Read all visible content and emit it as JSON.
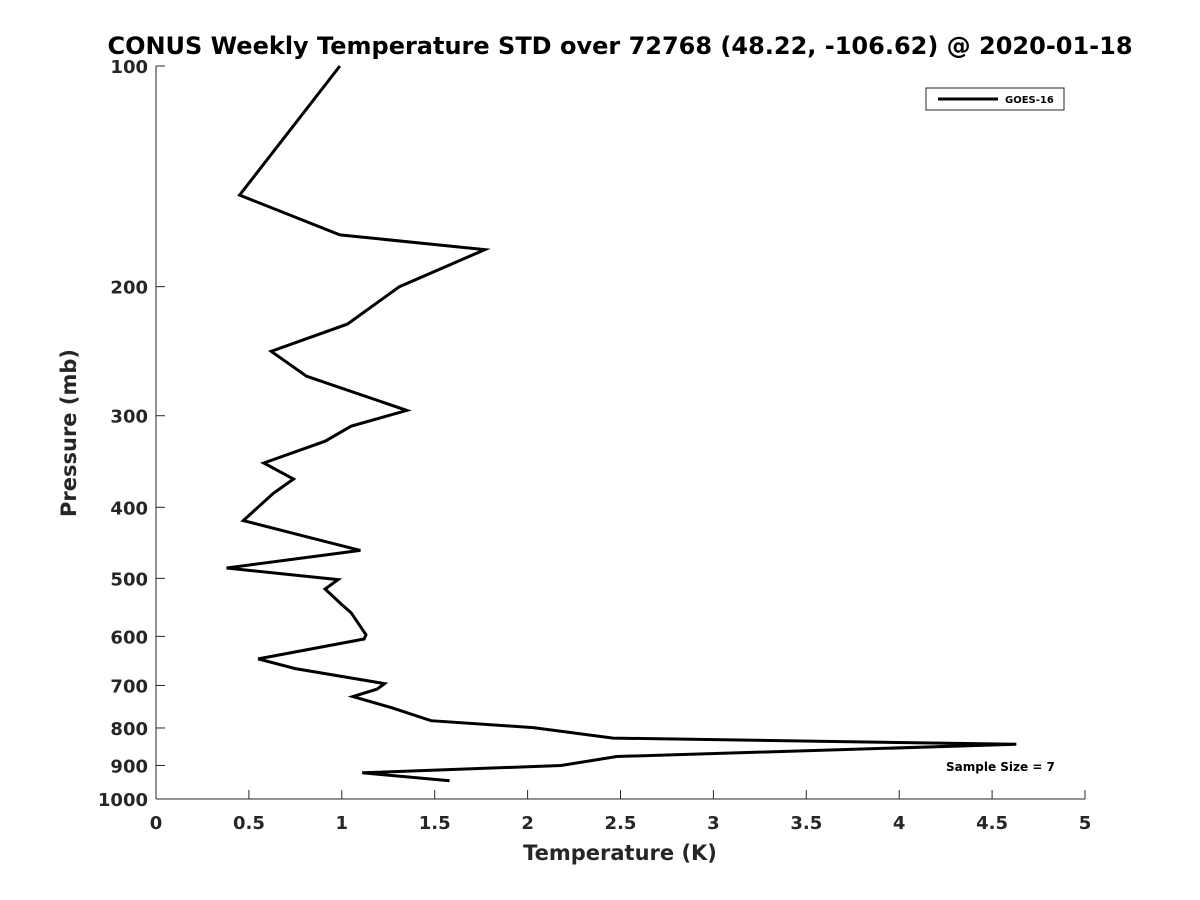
{
  "chart_data": {
    "type": "line",
    "title": "CONUS Weekly Temperature STD over 72768 (48.22, -106.62) @ 2020-01-18",
    "xlabel": "Temperature (K)",
    "ylabel": "Pressure (mb)",
    "xlim": [
      0,
      5
    ],
    "ylim": [
      100,
      1000
    ],
    "yscale": "log",
    "yreversed": true,
    "xticks": [
      0,
      0.5,
      1,
      1.5,
      2,
      2.5,
      3,
      3.5,
      4,
      4.5,
      5
    ],
    "xtick_labels": [
      "0",
      "0.5",
      "1",
      "1.5",
      "2",
      "2.5",
      "3",
      "3.5",
      "4",
      "4.5",
      "5"
    ],
    "yticks": [
      100,
      200,
      300,
      400,
      500,
      600,
      700,
      800,
      900,
      1000
    ],
    "ytick_labels": [
      "100",
      "200",
      "300",
      "400",
      "500",
      "600",
      "700",
      "800",
      "900",
      "1000"
    ],
    "grid": false,
    "legend_position": "top-right",
    "line_color": "#000000",
    "series": [
      {
        "name": "GOES-16",
        "x": [
          0.99,
          0.45,
          0.99,
          1.77,
          1.31,
          1.03,
          0.62,
          0.81,
          1.35,
          1.05,
          0.91,
          0.58,
          0.74,
          0.63,
          0.47,
          0.83,
          1.1,
          0.38,
          0.98,
          0.91,
          1.0,
          1.05,
          1.13,
          1.12,
          0.55,
          0.75,
          1.23,
          1.19,
          1.06,
          1.27,
          1.48,
          2.03,
          2.46,
          4.63,
          2.48,
          2.18,
          1.11,
          1.58
        ],
        "y": [
          100,
          150,
          170,
          178,
          200,
          225,
          245,
          265,
          295,
          310,
          325,
          348,
          366,
          383,
          417,
          440,
          458,
          484,
          502,
          517,
          543,
          557,
          597,
          605,
          644,
          664,
          696,
          708,
          725,
          751,
          782,
          799,
          826,
          842,
          875,
          900,
          921,
          944
        ]
      }
    ],
    "annotation": "Sample Size = 7"
  }
}
